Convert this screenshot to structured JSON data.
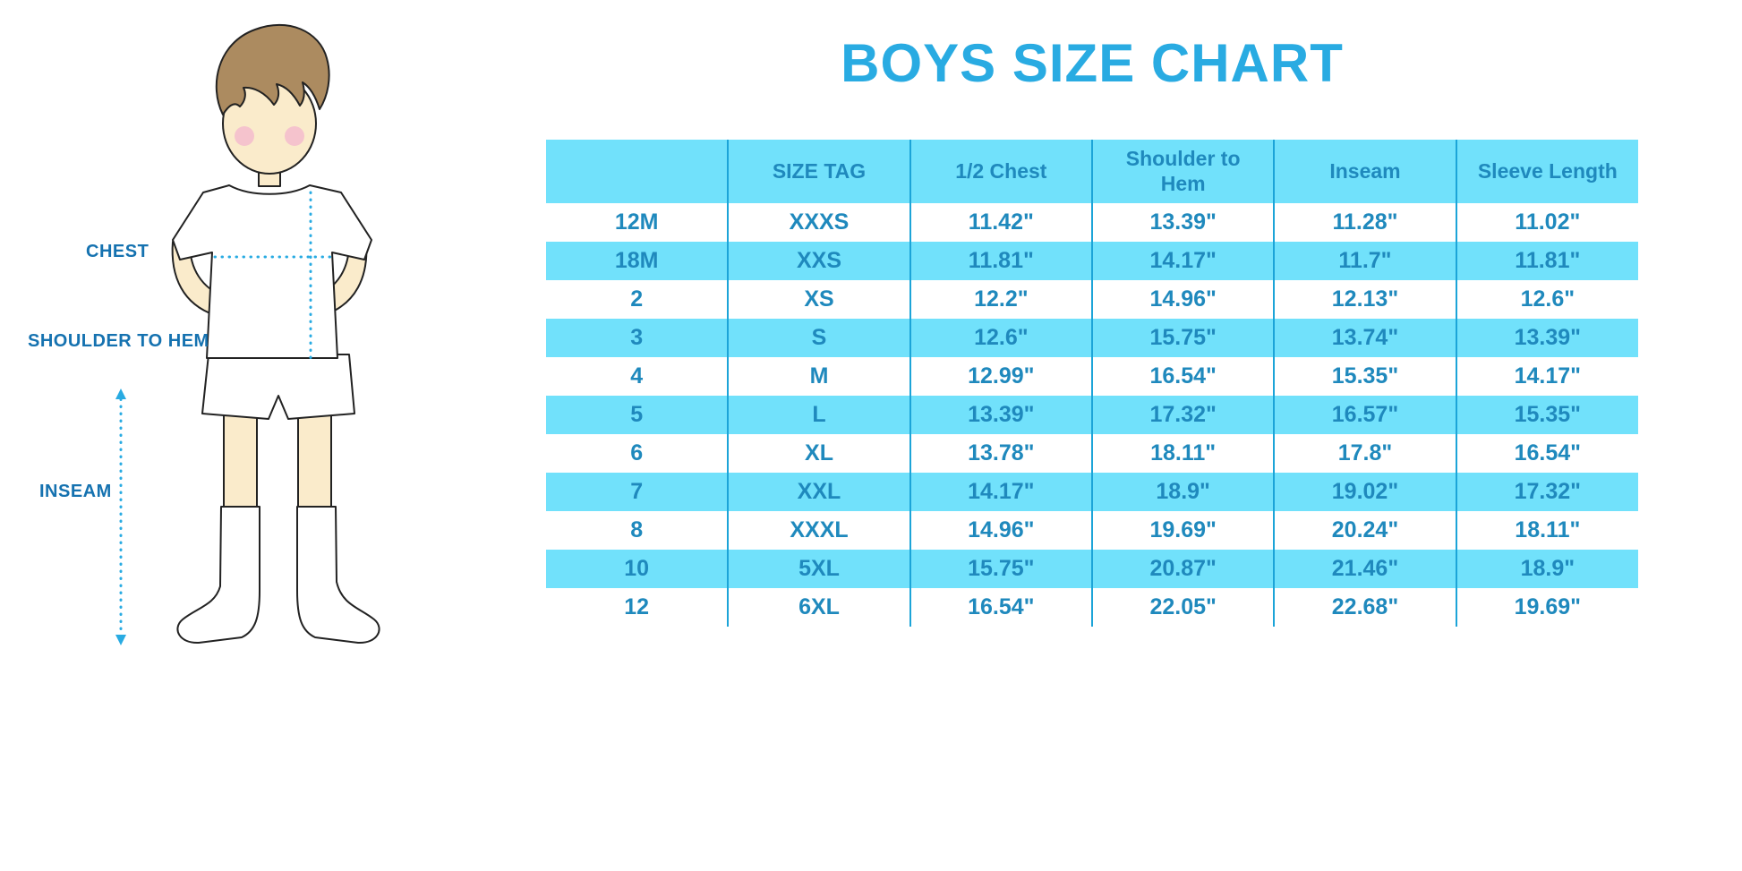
{
  "title": "BOYS SIZE CHART",
  "figure": {
    "chest_label": "CHEST",
    "shoulder_to_hem_label": "SHOULDER TO HEM",
    "inseam_label": "INSEAM"
  },
  "chart_data": {
    "type": "table",
    "title": "BOYS SIZE CHART",
    "units": "inches",
    "columns": [
      "",
      "SIZE TAG",
      "1/2 Chest",
      "Shoulder to Hem",
      "Inseam",
      "Sleeve Length"
    ],
    "rows": [
      [
        "12M",
        "XXXS",
        "11.42\"",
        "13.39\"",
        "11.28\"",
        "11.02\""
      ],
      [
        "18M",
        "XXS",
        "11.81\"",
        "14.17\"",
        "11.7\"",
        "11.81\""
      ],
      [
        "2",
        "XS",
        "12.2\"",
        "14.96\"",
        "12.13\"",
        "12.6\""
      ],
      [
        "3",
        "S",
        "12.6\"",
        "15.75\"",
        "13.74\"",
        "13.39\""
      ],
      [
        "4",
        "M",
        "12.99\"",
        "16.54\"",
        "15.35\"",
        "14.17\""
      ],
      [
        "5",
        "L",
        "13.39\"",
        "17.32\"",
        "16.57\"",
        "15.35\""
      ],
      [
        "6",
        "XL",
        "13.78\"",
        "18.11\"",
        "17.8\"",
        "16.54\""
      ],
      [
        "7",
        "XXL",
        "14.17\"",
        "18.9\"",
        "19.02\"",
        "17.32\""
      ],
      [
        "8",
        "XXXL",
        "14.96\"",
        "19.69\"",
        "20.24\"",
        "18.11\""
      ],
      [
        "10",
        "5XL",
        "15.75\"",
        "20.87\"",
        "21.46\"",
        "18.9\""
      ],
      [
        "12",
        "6XL",
        "16.54\"",
        "22.05\"",
        "22.68\"",
        "19.69\""
      ]
    ]
  },
  "colors": {
    "accent": "#29ABE2",
    "header_bg": "#71E1FB",
    "stripe_bg": "#71E1FB",
    "grid_line": "#1CA4D8",
    "table_text": "#1F89BD",
    "label_text": "#1572B0",
    "skin": "#FAEBCB",
    "hair": "#AC8B60",
    "cheek": "#F5C3CD"
  }
}
